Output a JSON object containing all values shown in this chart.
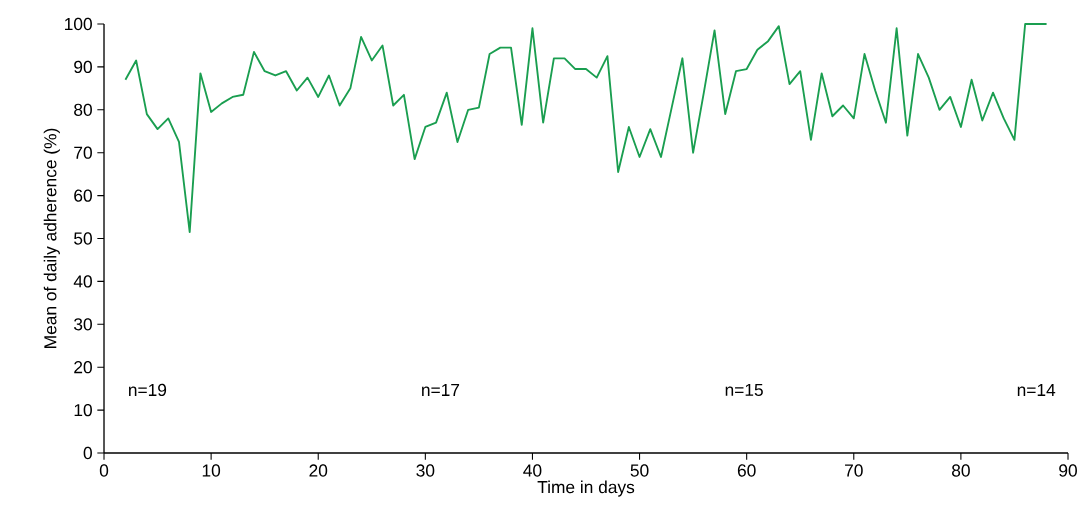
{
  "chart_data": {
    "type": "line",
    "xlabel": "Time in days",
    "ylabel": "Mean of daily adherence (%)",
    "x": [
      2,
      3,
      4,
      5,
      6,
      7,
      8,
      9,
      10,
      11,
      12,
      13,
      14,
      15,
      16,
      17,
      18,
      19,
      20,
      21,
      22,
      23,
      24,
      25,
      26,
      27,
      28,
      29,
      30,
      31,
      32,
      33,
      34,
      35,
      36,
      37,
      38,
      39,
      40,
      41,
      42,
      43,
      44,
      45,
      46,
      47,
      48,
      49,
      50,
      51,
      52,
      53,
      54,
      55,
      56,
      57,
      58,
      59,
      60,
      61,
      62,
      63,
      64,
      65,
      66,
      67,
      68,
      69,
      70,
      71,
      72,
      73,
      74,
      75,
      76,
      77,
      78,
      79,
      80,
      81,
      82,
      83,
      84,
      85,
      86,
      87,
      88
    ],
    "values": [
      87,
      91.5,
      79,
      75.5,
      78,
      72.5,
      51.5,
      88.5,
      79.5,
      81.5,
      83,
      83.5,
      93.5,
      89,
      88,
      89,
      84.5,
      87.5,
      83,
      88,
      81,
      85,
      97,
      91.5,
      95,
      81,
      83.5,
      68.5,
      76,
      77,
      84,
      72.5,
      80,
      80.5,
      93,
      94.5,
      94.5,
      76.5,
      99,
      77,
      92,
      92,
      89.5,
      89.5,
      87.5,
      92.5,
      65.5,
      76,
      69,
      75.5,
      69,
      80.5,
      92,
      70,
      84,
      98.5,
      79,
      89,
      89.5,
      94,
      96,
      99.5,
      86,
      89,
      73,
      88.5,
      78.5,
      81,
      78,
      93,
      84.5,
      77,
      99,
      74,
      93,
      87.5,
      80,
      83,
      76,
      87,
      77.5,
      84,
      78,
      73,
      100,
      100,
      100
    ],
    "color": "#1a9e50",
    "xlim": [
      0,
      90
    ],
    "xticks": [
      0,
      10,
      20,
      30,
      40,
      50,
      60,
      70,
      80,
      90
    ],
    "ylim": [
      0,
      100
    ],
    "yticks": [
      0,
      10,
      20,
      30,
      40,
      50,
      60,
      70,
      80,
      90,
      100
    ],
    "grid": false,
    "marker": "none",
    "line_style": "solid",
    "annotations": [
      "n=19",
      "n=17",
      "n=15",
      "n=14"
    ]
  }
}
